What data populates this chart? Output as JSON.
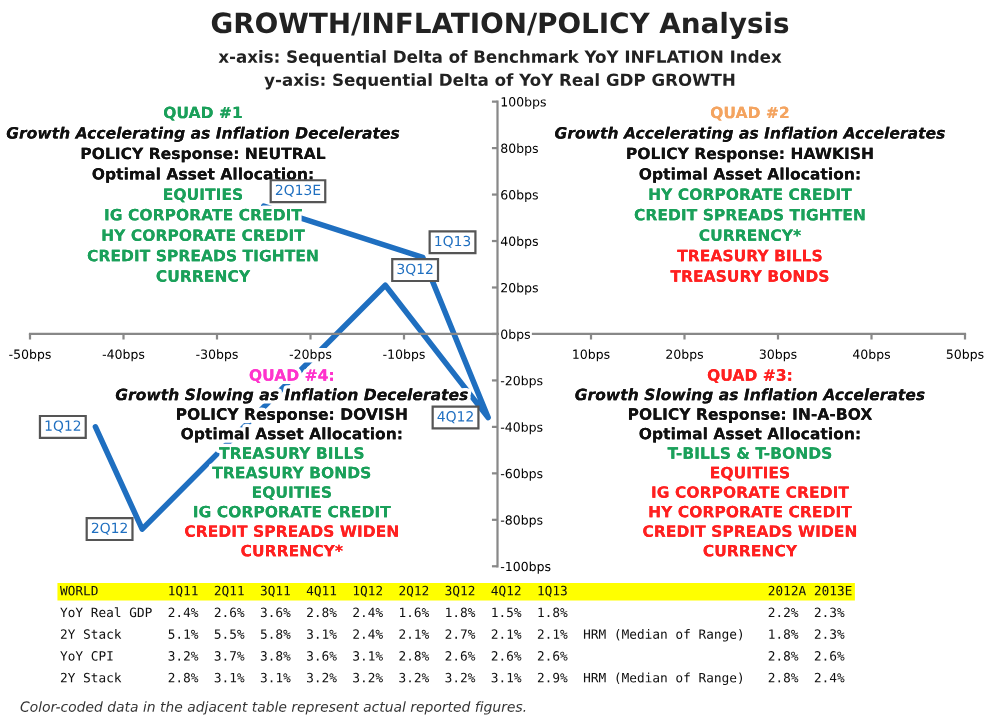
{
  "chart_data": {
    "type": "line",
    "title": "GROWTH/INFLATION/POLICY Analysis",
    "xlabel": "x-axis: Sequential Delta of Benchmark YoY INFLATION Index",
    "ylabel": "y-axis: Sequential Delta of YoY Real GDP GROWTH",
    "xlim": [
      -50,
      50
    ],
    "ylim": [
      -100,
      100
    ],
    "xticks": [
      {
        "value": -50,
        "label": "-50bps"
      },
      {
        "value": -40,
        "label": "-40bps"
      },
      {
        "value": -30,
        "label": "-30bps"
      },
      {
        "value": -20,
        "label": "-20bps"
      },
      {
        "value": -10,
        "label": "-10bps"
      },
      {
        "value": 10,
        "label": "10bps"
      },
      {
        "value": 20,
        "label": "20bps"
      },
      {
        "value": 30,
        "label": "30bps"
      },
      {
        "value": 40,
        "label": "40bps"
      },
      {
        "value": 50,
        "label": "50bps"
      }
    ],
    "yticks": [
      {
        "value": -100,
        "label": "-100bps"
      },
      {
        "value": -80,
        "label": "-80bps"
      },
      {
        "value": -60,
        "label": "-60bps"
      },
      {
        "value": -40,
        "label": "-40bps"
      },
      {
        "value": -20,
        "label": "-20bps"
      },
      {
        "value": 0,
        "label": "0bps"
      },
      {
        "value": 20,
        "label": "20bps"
      },
      {
        "value": 40,
        "label": "40bps"
      },
      {
        "value": 60,
        "label": "60bps"
      },
      {
        "value": 80,
        "label": "80bps"
      },
      {
        "value": 100,
        "label": "100bps"
      }
    ],
    "grid": false,
    "line_style": "solid",
    "series": [
      {
        "color": "#1f6fc0",
        "x": [
          -43,
          -38,
          -12,
          -1,
          -8,
          -25
        ],
        "values": [
          -40,
          -84,
          21,
          -36,
          33,
          55
        ]
      }
    ],
    "annotations": [
      {
        "text": "1Q12",
        "x": -43,
        "y": -40
      },
      {
        "text": "2Q12",
        "x": -38,
        "y": -84
      },
      {
        "text": "3Q12",
        "x": -12,
        "y": 21
      },
      {
        "text": "4Q12",
        "x": -1,
        "y": -36
      },
      {
        "text": "1Q13",
        "x": -8,
        "y": 33
      },
      {
        "text": "2Q13E",
        "x": -25,
        "y": 55
      },
      "QUAD #1\nGrowth Accelerating as Inflation Decelerates\nPOLICY Response: NEUTRAL\nOptimal Asset Allocation:\nEQUITIES\nIG CORPORATE CREDIT\nHY CORPORATE CREDIT\nCREDIT SPREADS TIGHTEN\nCURRENCY",
      "QUAD #2\nGrowth Accelerating as Inflation Accelerates\nPOLICY Response: HAWKISH\nOptimal Asset Allocation:\nHY CORPORATE CREDIT\nCREDIT SPREADS TIGHTEN\nCURRENCY*\nTREASURY BILLS\nTREASURY BONDS",
      "QUAD #3:\nGrowth Slowing as Inflation Accelerates\nPOLICY Response: IN-A-BOX\nOptimal Asset Allocation:\nT-BILLS & T-BONDS\nEQUITIES\nIG CORPORATE CREDIT\nHY CORPORATE CREDIT\nCREDIT SPREADS WIDEN\nCURRENCY",
      "QUAD #4:\nGrowth Slowing as Inflation Decelerates\nPOLICY Response: DOVISH\nOptimal Asset Allocation:\nTREASURY BILLS\nTREASURY BONDS\nEQUITIES\nIG CORPORATE CREDIT\nCREDIT SPREADS WIDEN\nCURRENCY*",
      "WORLD         1Q11  2Q11  3Q11  4Q11  1Q12  2Q12  3Q12  4Q12  1Q13                          2012A 2013E",
      "YoY Real GDP  2.4%  2.6%  3.6%  2.8%  2.4%  1.6%  1.8%  1.5%  1.8%                          2.2%  2.3%",
      "2Y Stack      5.1%  5.5%  5.8%  3.1%  2.4%  2.1%  2.7%  2.1%  2.1%  HRM (Median of Range)   1.8%  2.3%",
      "YoY CPI       3.2%  3.7%  3.8%  3.6%  3.1%  2.8%  2.6%  2.6%  2.6%                          2.8%  2.6%",
      "2Y Stack      2.8%  3.1%  3.1%  3.2%  3.2%  3.2%  3.2%  3.1%  2.9%  HRM (Median of Range)   2.8%  2.4%",
      "Color-coded data in the adjacent table represent actual reported figures."
    ]
  }
}
